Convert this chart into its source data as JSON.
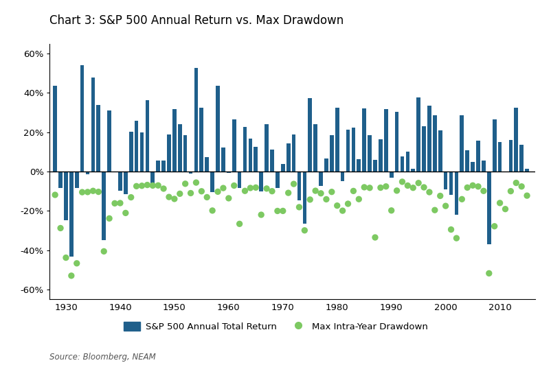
{
  "title": "Chart 3: S&P 500 Annual Return vs. Max Drawdown",
  "source": "Source: Bloomberg, NEAM",
  "bar_color": "#1f5f8b",
  "dot_color": "#7dc962",
  "background_color": "#ffffff",
  "ylim": [
    -0.65,
    0.65
  ],
  "yticks": [
    -0.6,
    -0.4,
    -0.2,
    0.0,
    0.2,
    0.4,
    0.6
  ],
  "ytick_labels": [
    "-60%",
    "-40%",
    "-20%",
    "0%",
    "20%",
    "40%",
    "60%"
  ],
  "xlim_left": 1927.0,
  "xlim_right": 2016.5,
  "decade_ticks": [
    1930,
    1940,
    1950,
    1960,
    1970,
    1980,
    1990,
    2000,
    2010
  ],
  "years": [
    1928,
    1929,
    1930,
    1931,
    1932,
    1933,
    1934,
    1935,
    1936,
    1937,
    1938,
    1939,
    1940,
    1941,
    1942,
    1943,
    1944,
    1945,
    1946,
    1947,
    1948,
    1949,
    1950,
    1951,
    1952,
    1953,
    1954,
    1955,
    1956,
    1957,
    1958,
    1959,
    1960,
    1961,
    1962,
    1963,
    1964,
    1965,
    1966,
    1967,
    1968,
    1969,
    1970,
    1971,
    1972,
    1973,
    1974,
    1975,
    1976,
    1977,
    1978,
    1979,
    1980,
    1981,
    1982,
    1983,
    1984,
    1985,
    1986,
    1987,
    1988,
    1989,
    1990,
    1991,
    1992,
    1993,
    1994,
    1995,
    1996,
    1997,
    1998,
    1999,
    2000,
    2001,
    2002,
    2003,
    2004,
    2005,
    2006,
    2007,
    2008,
    2009,
    2010,
    2011,
    2012,
    2013,
    2014,
    2015
  ],
  "annual_returns": [
    0.4381,
    -0.083,
    -0.249,
    -0.4334,
    -0.0819,
    0.5399,
    -0.0144,
    0.4767,
    0.3381,
    -0.3503,
    0.3112,
    -0.0041,
    -0.0978,
    -0.1159,
    0.2034,
    0.259,
    0.1975,
    0.3644,
    -0.0807,
    0.0571,
    0.055,
    0.1879,
    0.3171,
    0.2402,
    0.1837,
    -0.0099,
    0.5262,
    0.3256,
    0.0744,
    -0.1046,
    0.4372,
    0.1206,
    -0.0085,
    0.2668,
    -0.085,
    0.2277,
    0.1689,
    0.1245,
    -0.1006,
    0.2398,
    0.1106,
    -0.085,
    0.0401,
    0.1431,
    0.1898,
    -0.1466,
    -0.2647,
    0.372,
    0.2393,
    -0.0718,
    0.0656,
    0.1844,
    0.3242,
    -0.0491,
    0.2141,
    0.2251,
    0.0615,
    0.3216,
    0.1862,
    0.0581,
    0.1654,
    0.3169,
    -0.0306,
    0.3047,
    0.0762,
    0.1008,
    0.0132,
    0.3758,
    0.2296,
    0.3336,
    0.2858,
    0.2104,
    -0.091,
    -0.1189,
    -0.221,
    0.2869,
    0.1088,
    0.0491,
    0.1579,
    0.0549,
    -0.37,
    0.2646,
    0.1506,
    -0.0,
    0.16,
    0.3239,
    0.1369,
    0.0138
  ],
  "max_drawdowns": [
    -0.1186,
    -0.2878,
    -0.4382,
    -0.5299,
    -0.4669,
    -0.1049,
    -0.1041,
    -0.0984,
    -0.1031,
    -0.406,
    -0.2385,
    -0.1617,
    -0.1604,
    -0.2108,
    -0.131,
    -0.0744,
    -0.0723,
    -0.0682,
    -0.0712,
    -0.0706,
    -0.0869,
    -0.1295,
    -0.1392,
    -0.1128,
    -0.062,
    -0.1098,
    -0.056,
    -0.1003,
    -0.1305,
    -0.1985,
    -0.1024,
    -0.084,
    -0.1358,
    -0.0713,
    -0.2662,
    -0.0985,
    -0.0835,
    -0.0814,
    -0.2199,
    -0.0865,
    -0.0999,
    -0.2005,
    -0.2003,
    -0.1085,
    -0.0631,
    -0.1811,
    -0.2993,
    -0.1426,
    -0.0978,
    -0.1108,
    -0.1411,
    -0.1034,
    -0.1733,
    -0.1992,
    -0.1639,
    -0.0989,
    -0.1404,
    -0.0798,
    -0.0829,
    -0.3351,
    -0.082,
    -0.0758,
    -0.1981,
    -0.0971,
    -0.0519,
    -0.0713,
    -0.0826,
    -0.0582,
    -0.0802,
    -0.1047,
    -0.1961,
    -0.1237,
    -0.175,
    -0.295,
    -0.3389,
    -0.1406,
    -0.0814,
    -0.0707,
    -0.076,
    -0.0987,
    -0.5178,
    -0.2782,
    -0.1599,
    -0.1908,
    -0.0998,
    -0.0576,
    -0.0758,
    -0.1225
  ]
}
